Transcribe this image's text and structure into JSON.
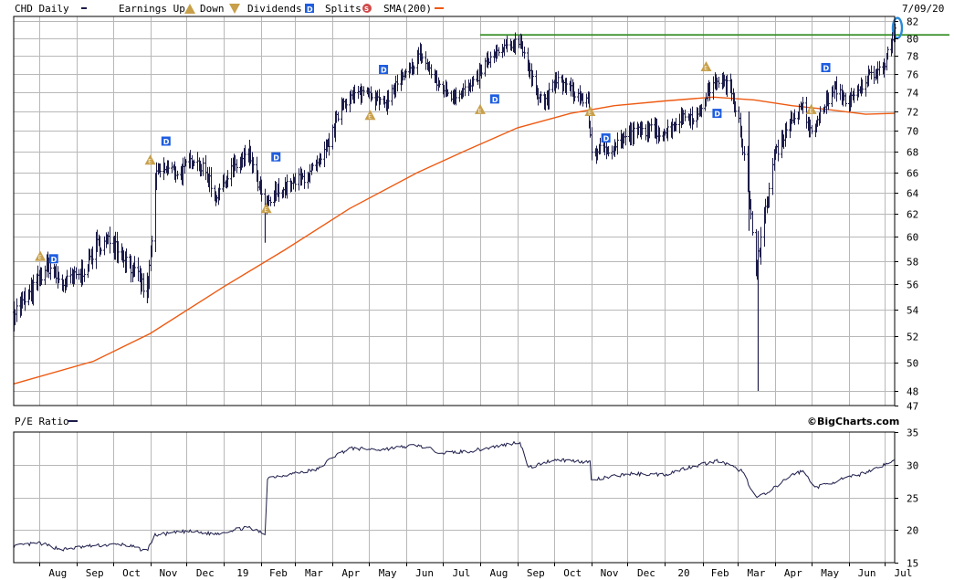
{
  "header": {
    "symbol_label": "CHD Daily",
    "earnings_label": "Earnings Up",
    "down_label": "Down",
    "dividends_label": "Dividends",
    "splits_label": "Splits",
    "sma_label": "SMA(200)",
    "date_label": "7/09/20"
  },
  "pe_panel": {
    "label": "P/E Ratio",
    "brand": "©BigCharts.com"
  },
  "colors": {
    "price": "#1c1c4a",
    "sma": "#ee5a12",
    "resistance": "#2f8a1e",
    "marker_up": "#c8a04a",
    "dividend": "#1e5de0",
    "split": "#d04a4a",
    "highlight": "#2a8ad8",
    "grid": "#b8b8b8"
  },
  "icons": {
    "earnings_up": "triangle-E-icon",
    "earnings_down": "inverted-triangle-E-icon",
    "dividend": "blue-square-D-icon",
    "split": "red-circle-S-icon"
  },
  "chart_data": [
    {
      "type": "line",
      "subtype": "ohlc-bars",
      "title": "CHD Daily",
      "x_axis": {
        "type": "date",
        "range": [
          "2018-07-11",
          "2020-07-09"
        ],
        "tick_labels": [
          "Aug",
          "Sep",
          "Oct",
          "Nov",
          "Dec",
          "19",
          "Feb",
          "Mar",
          "Apr",
          "May",
          "Jun",
          "Jul",
          "Aug",
          "Sep",
          "Oct",
          "Nov",
          "Dec",
          "20",
          "Feb",
          "Mar",
          "Apr",
          "May",
          "Jun",
          "Jul"
        ]
      },
      "y_axis": {
        "ylim": [
          47,
          82
        ],
        "tick_labels": [
          "82",
          "80",
          "78",
          "76",
          "74",
          "72",
          "70",
          "68",
          "66",
          "64",
          "62",
          "60",
          "58",
          "56",
          "54",
          "52",
          "50",
          "48",
          "47"
        ]
      },
      "grid": true,
      "series": [
        {
          "name": "CHD Daily",
          "style": "ohlc",
          "points": [
            [
              "2018-07-11",
              53.8
            ],
            [
              "2018-07-25",
              55.3
            ],
            [
              "2018-08-08",
              57.6
            ],
            [
              "2018-08-20",
              56.0
            ],
            [
              "2018-09-04",
              56.8
            ],
            [
              "2018-09-18",
              59.3
            ],
            [
              "2018-10-01",
              59.7
            ],
            [
              "2018-10-10",
              58.4
            ],
            [
              "2018-10-24",
              56.2
            ],
            [
              "2018-10-29",
              55.1
            ],
            [
              "2018-11-01",
              58.5
            ],
            [
              "2018-11-06",
              66.0
            ],
            [
              "2018-11-15",
              66.4
            ],
            [
              "2018-11-26",
              65.9
            ],
            [
              "2018-12-07",
              67.5
            ],
            [
              "2018-12-20",
              65.3
            ],
            [
              "2018-12-24",
              63.5
            ],
            [
              "2019-01-07",
              66.3
            ],
            [
              "2019-01-22",
              67.7
            ],
            [
              "2019-02-04",
              62.5
            ],
            [
              "2019-02-13",
              64.1
            ],
            [
              "2019-02-26",
              64.8
            ],
            [
              "2019-03-11",
              65.8
            ],
            [
              "2019-03-22",
              66.9
            ],
            [
              "2019-04-01",
              69.8
            ],
            [
              "2019-04-08",
              72.9
            ],
            [
              "2019-04-17",
              73.5
            ],
            [
              "2019-04-30",
              74.3
            ],
            [
              "2019-05-13",
              72.5
            ],
            [
              "2019-05-24",
              74.9
            ],
            [
              "2019-06-04",
              76.3
            ],
            [
              "2019-06-12",
              78.3
            ],
            [
              "2019-06-26",
              75.0
            ],
            [
              "2019-07-08",
              73.7
            ],
            [
              "2019-07-25",
              74.6
            ],
            [
              "2019-08-06",
              77.3
            ],
            [
              "2019-08-20",
              78.7
            ],
            [
              "2019-09-03",
              79.9
            ],
            [
              "2019-09-12",
              75.4
            ],
            [
              "2019-09-23",
              72.8
            ],
            [
              "2019-10-03",
              75.3
            ],
            [
              "2019-10-14",
              74.3
            ],
            [
              "2019-10-29",
              72.9
            ],
            [
              "2019-11-01",
              67.9
            ],
            [
              "2019-11-15",
              68.3
            ],
            [
              "2019-12-02",
              69.6
            ],
            [
              "2019-12-16",
              70.1
            ],
            [
              "2020-01-02",
              69.9
            ],
            [
              "2020-01-15",
              71.5
            ],
            [
              "2020-01-28",
              71.5
            ],
            [
              "2020-02-05",
              74.1
            ],
            [
              "2020-02-14",
              75.4
            ],
            [
              "2020-02-24",
              74.4
            ],
            [
              "2020-03-02",
              71.3
            ],
            [
              "2020-03-09",
              64.5
            ],
            [
              "2020-03-16",
              57.5
            ],
            [
              "2020-03-23",
              61.4
            ],
            [
              "2020-03-31",
              67.5
            ],
            [
              "2020-04-13",
              71.0
            ],
            [
              "2020-04-24",
              72.4
            ],
            [
              "2020-05-01",
              69.5
            ],
            [
              "2020-05-11",
              72.6
            ],
            [
              "2020-05-21",
              74.4
            ],
            [
              "2020-06-01",
              72.9
            ],
            [
              "2020-06-10",
              74.2
            ],
            [
              "2020-06-16",
              75.7
            ],
            [
              "2020-06-24",
              76.4
            ],
            [
              "2020-07-01",
              77.3
            ],
            [
              "2020-07-09",
              80.8
            ]
          ],
          "range_spikes": [
            [
              "2020-03-18",
              48.0,
              60.5
            ],
            [
              "2020-03-10",
              60.5,
              72.0
            ],
            [
              "2019-02-04",
              59.5,
              63.0
            ],
            [
              "2018-10-29",
              54.5,
              57.0
            ]
          ]
        },
        {
          "name": "SMA(200)",
          "style": "line",
          "points": [
            [
              "2018-07-11",
              48.5
            ],
            [
              "2018-09-15",
              50.1
            ],
            [
              "2018-11-01",
              52.2
            ],
            [
              "2019-01-01",
              55.8
            ],
            [
              "2019-02-20",
              58.9
            ],
            [
              "2019-04-15",
              62.5
            ],
            [
              "2019-06-10",
              66.0
            ],
            [
              "2019-07-20",
              68.1
            ],
            [
              "2019-09-01",
              70.3
            ],
            [
              "2019-10-15",
              71.8
            ],
            [
              "2019-11-20",
              72.6
            ],
            [
              "2020-01-01",
              73.1
            ],
            [
              "2020-02-10",
              73.5
            ],
            [
              "2020-03-15",
              73.2
            ],
            [
              "2020-04-15",
              72.6
            ],
            [
              "2020-05-15",
              72.2
            ],
            [
              "2020-06-15",
              71.7
            ],
            [
              "2020-07-09",
              71.8
            ]
          ]
        }
      ],
      "annotations": {
        "resistance_level": 80.4,
        "resistance_from": "2019-08-01",
        "earnings_markers": [
          {
            "date": "2018-08-02",
            "value": 58.4
          },
          {
            "date": "2018-11-01",
            "value": 67.2
          },
          {
            "date": "2019-02-05",
            "value": 62.5
          },
          {
            "date": "2019-05-02",
            "value": 71.6
          },
          {
            "date": "2019-08-01",
            "value": 72.2
          },
          {
            "date": "2019-10-31",
            "value": 72.0
          },
          {
            "date": "2020-02-04",
            "value": 76.8
          },
          {
            "date": "2020-05-01",
            "value": 72.2
          }
        ],
        "dividend_markers": [
          {
            "date": "2018-08-13",
            "value": 58.2
          },
          {
            "date": "2018-11-14",
            "value": 69.0
          },
          {
            "date": "2019-02-13",
            "value": 67.5
          },
          {
            "date": "2019-05-13",
            "value": 76.5
          },
          {
            "date": "2019-08-13",
            "value": 73.3
          },
          {
            "date": "2019-11-13",
            "value": 69.3
          },
          {
            "date": "2020-02-13",
            "value": 71.8
          },
          {
            "date": "2020-05-13",
            "value": 76.7
          }
        ]
      }
    },
    {
      "type": "line",
      "title": "P/E Ratio",
      "x_axis": {
        "type": "date",
        "range": [
          "2018-07-11",
          "2020-07-09"
        ]
      },
      "y_axis": {
        "ylim": [
          15,
          35
        ],
        "tick_labels": [
          "35",
          "30",
          "25",
          "20",
          "15"
        ]
      },
      "grid": true,
      "series": [
        {
          "name": "P/E Ratio",
          "points": [
            [
              "2018-07-11",
              17.5
            ],
            [
              "2018-08-01",
              18.0
            ],
            [
              "2018-08-20",
              17.0
            ],
            [
              "2018-09-15",
              17.6
            ],
            [
              "2018-10-10",
              17.8
            ],
            [
              "2018-10-29",
              16.8
            ],
            [
              "2018-11-05",
              19.2
            ],
            [
              "2018-12-01",
              19.8
            ],
            [
              "2018-12-24",
              19.4
            ],
            [
              "2019-01-20",
              20.4
            ],
            [
              "2019-02-04",
              19.4
            ],
            [
              "2019-02-06",
              28.0
            ],
            [
              "2019-03-01",
              28.7
            ],
            [
              "2019-03-20",
              29.3
            ],
            [
              "2019-04-01",
              31.2
            ],
            [
              "2019-04-15",
              32.5
            ],
            [
              "2019-05-10",
              32.3
            ],
            [
              "2019-06-10",
              33.0
            ],
            [
              "2019-07-01",
              31.8
            ],
            [
              "2019-07-25",
              32.1
            ],
            [
              "2019-08-20",
              33.0
            ],
            [
              "2019-09-03",
              33.5
            ],
            [
              "2019-09-10",
              29.5
            ],
            [
              "2019-10-01",
              30.8
            ],
            [
              "2019-10-31",
              30.4
            ],
            [
              "2019-11-01",
              27.6
            ],
            [
              "2019-12-01",
              28.6
            ],
            [
              "2020-01-01",
              28.5
            ],
            [
              "2020-01-20",
              29.6
            ],
            [
              "2020-02-14",
              30.6
            ],
            [
              "2020-03-05",
              29.0
            ],
            [
              "2020-03-16",
              25.0
            ],
            [
              "2020-03-25",
              25.5
            ],
            [
              "2020-04-15",
              28.5
            ],
            [
              "2020-04-24",
              29.0
            ],
            [
              "2020-05-05",
              26.5
            ],
            [
              "2020-05-20",
              27.4
            ],
            [
              "2020-06-10",
              28.5
            ],
            [
              "2020-06-25",
              29.6
            ],
            [
              "2020-07-09",
              30.6
            ]
          ]
        }
      ]
    }
  ]
}
